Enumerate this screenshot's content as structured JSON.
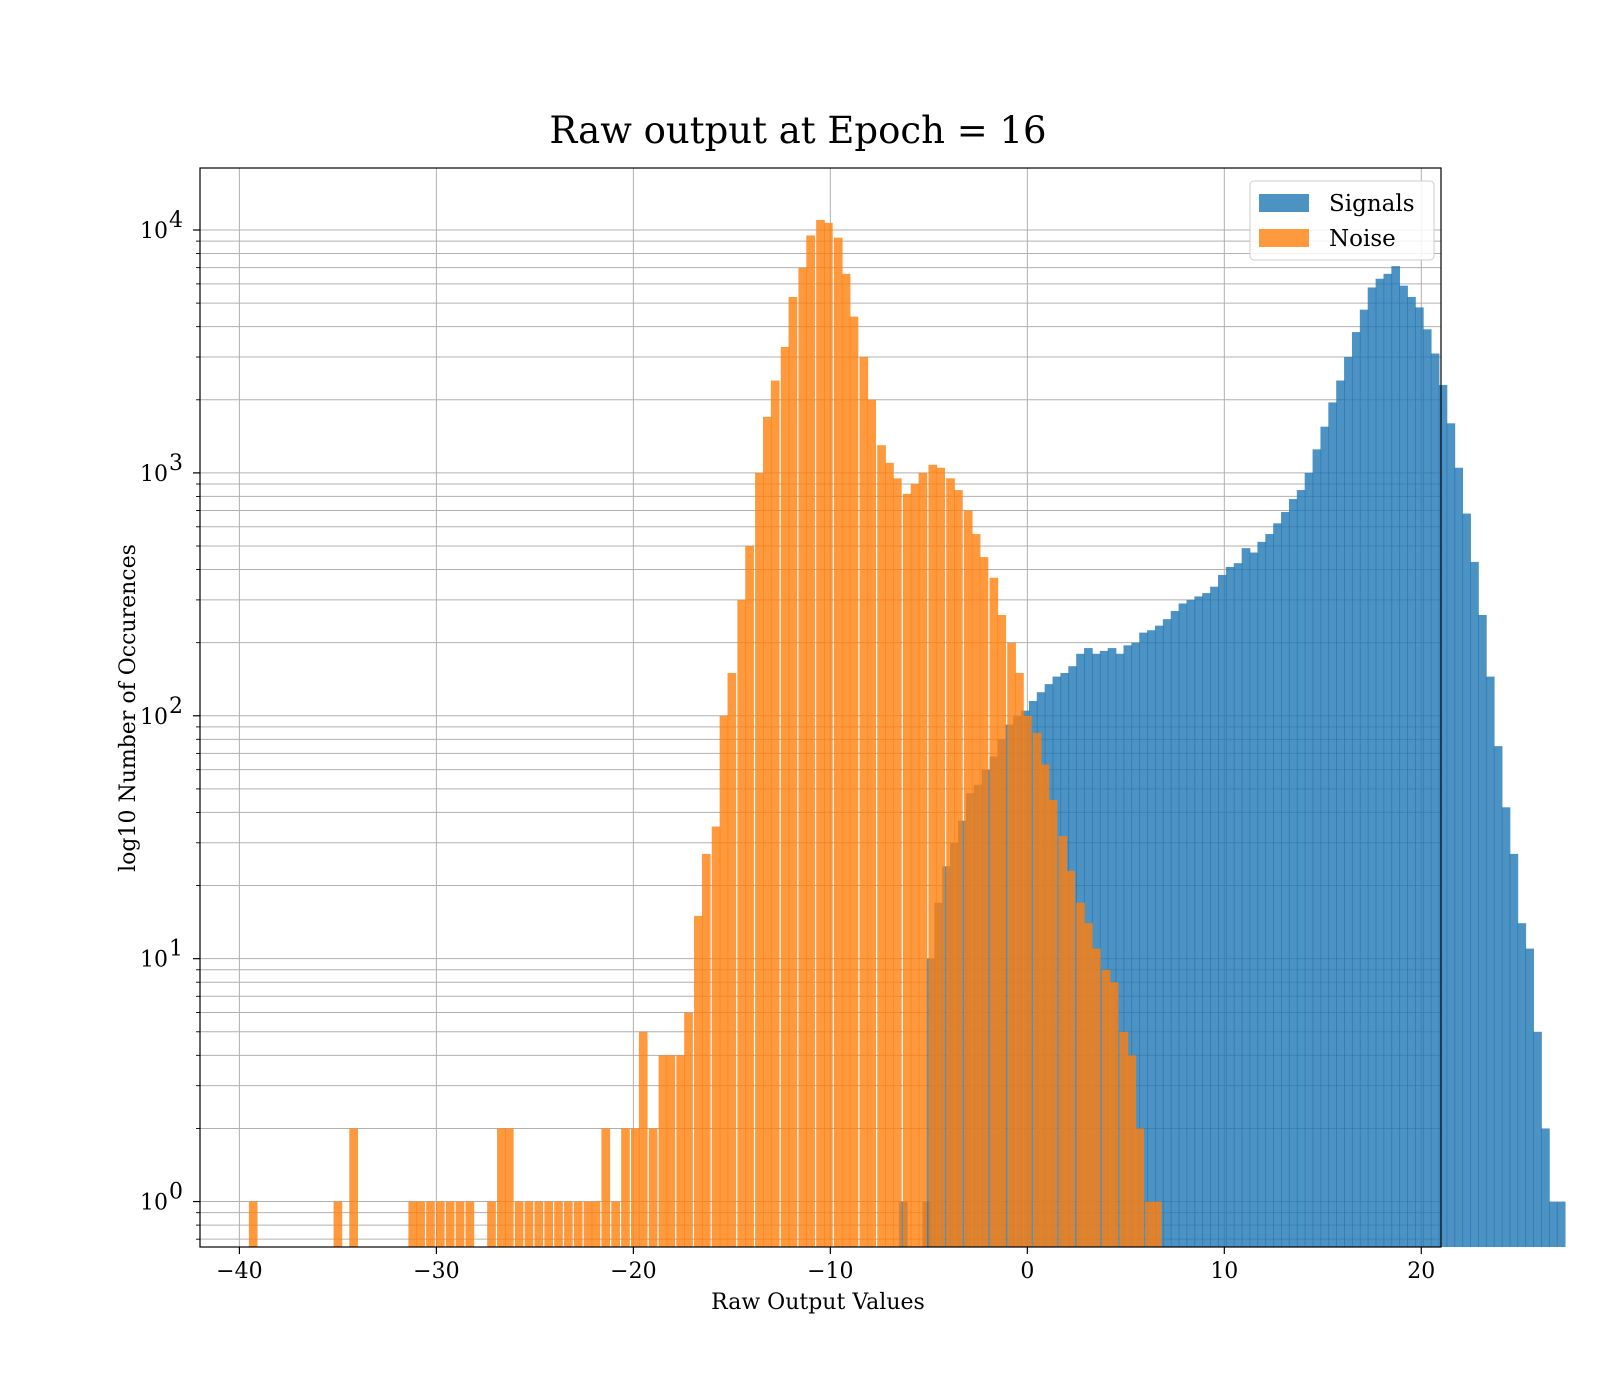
{
  "chart_data": {
    "type": "bar",
    "title": "Raw output at Epoch = 16",
    "xlabel": "Raw Output Values",
    "ylabel": "log10 Number of Occurences",
    "xlim": [
      -42,
      21
    ],
    "ylim": [
      0.65,
      18000
    ],
    "yscale": "log",
    "grid": true,
    "legend_position": "top-right",
    "x_ticks": [
      {
        "value": -40,
        "label": "−40"
      },
      {
        "value": -30,
        "label": "−30"
      },
      {
        "value": -20,
        "label": "−20"
      },
      {
        "value": -10,
        "label": "−10"
      },
      {
        "value": 0,
        "label": "0"
      },
      {
        "value": 10,
        "label": "10"
      },
      {
        "value": 20,
        "label": "20"
      }
    ],
    "y_ticks": [
      {
        "value": 1,
        "base": "10",
        "exp": "0"
      },
      {
        "value": 10,
        "base": "10",
        "exp": "1"
      },
      {
        "value": 100,
        "base": "10",
        "exp": "2"
      },
      {
        "value": 1000,
        "base": "10",
        "exp": "3"
      },
      {
        "value": 10000,
        "base": "10",
        "exp": "4"
      }
    ],
    "series": [
      {
        "name": "Signals",
        "color": "#1f77b4",
        "opacity": 0.8,
        "bins": [
          [
            -6.3,
            1
          ],
          [
            -5.1,
            1
          ],
          [
            -4.9,
            10
          ],
          [
            -4.5,
            17
          ],
          [
            -4.1,
            24
          ],
          [
            -3.7,
            30
          ],
          [
            -3.3,
            37
          ],
          [
            -2.9,
            48
          ],
          [
            -2.5,
            52
          ],
          [
            -2.1,
            60
          ],
          [
            -1.7,
            68
          ],
          [
            -1.3,
            80
          ],
          [
            -0.9,
            92
          ],
          [
            -0.5,
            100
          ],
          [
            -0.1,
            105
          ],
          [
            0.3,
            115
          ],
          [
            0.7,
            125
          ],
          [
            1.1,
            135
          ],
          [
            1.5,
            145
          ],
          [
            1.9,
            150
          ],
          [
            2.3,
            160
          ],
          [
            2.7,
            180
          ],
          [
            3.1,
            190
          ],
          [
            3.5,
            180
          ],
          [
            3.9,
            185
          ],
          [
            4.3,
            190
          ],
          [
            4.7,
            180
          ],
          [
            5.1,
            195
          ],
          [
            5.5,
            200
          ],
          [
            5.9,
            220
          ],
          [
            6.3,
            225
          ],
          [
            6.7,
            235
          ],
          [
            7.1,
            250
          ],
          [
            7.5,
            270
          ],
          [
            7.9,
            290
          ],
          [
            8.3,
            300
          ],
          [
            8.7,
            310
          ],
          [
            9.1,
            320
          ],
          [
            9.5,
            340
          ],
          [
            9.9,
            380
          ],
          [
            10.3,
            410
          ],
          [
            10.7,
            425
          ],
          [
            11.1,
            490
          ],
          [
            11.5,
            470
          ],
          [
            11.9,
            520
          ],
          [
            12.3,
            560
          ],
          [
            12.7,
            620
          ],
          [
            13.1,
            690
          ],
          [
            13.5,
            780
          ],
          [
            13.9,
            850
          ],
          [
            14.3,
            1000
          ],
          [
            14.7,
            1250
          ],
          [
            15.1,
            1550
          ],
          [
            15.5,
            1950
          ],
          [
            15.9,
            2400
          ],
          [
            16.3,
            3000
          ],
          [
            16.7,
            3800
          ],
          [
            17.1,
            4700
          ],
          [
            17.5,
            5800
          ],
          [
            17.9,
            6300
          ],
          [
            18.3,
            6600
          ],
          [
            18.7,
            7100
          ],
          [
            19.1,
            5900
          ],
          [
            19.5,
            5300
          ],
          [
            19.9,
            4800
          ],
          [
            20.3,
            3900
          ],
          [
            20.7,
            3100
          ],
          [
            21.1,
            2300
          ],
          [
            21.5,
            1600
          ],
          [
            21.9,
            1050
          ],
          [
            22.3,
            680
          ],
          [
            22.7,
            430
          ],
          [
            23.1,
            260
          ],
          [
            23.5,
            145
          ],
          [
            23.9,
            75
          ],
          [
            24.3,
            42
          ],
          [
            24.7,
            27
          ],
          [
            25.1,
            14
          ],
          [
            25.5,
            11
          ],
          [
            25.9,
            5
          ],
          [
            26.3,
            2
          ],
          [
            26.7,
            1
          ],
          [
            27.1,
            1
          ]
        ]
      },
      {
        "name": "Noise",
        "color": "#ff7f0e",
        "opacity": 0.8,
        "bins": [
          [
            -39.3,
            1
          ],
          [
            -35.0,
            1
          ],
          [
            -34.2,
            2
          ],
          [
            -31.2,
            1
          ],
          [
            -30.8,
            1
          ],
          [
            -30.3,
            1
          ],
          [
            -29.8,
            1
          ],
          [
            -29.3,
            1
          ],
          [
            -28.8,
            1
          ],
          [
            -28.3,
            1
          ],
          [
            -27.2,
            1
          ],
          [
            -26.7,
            2
          ],
          [
            -26.3,
            2
          ],
          [
            -25.8,
            1
          ],
          [
            -25.3,
            1
          ],
          [
            -24.8,
            1
          ],
          [
            -24.3,
            1
          ],
          [
            -23.8,
            1
          ],
          [
            -23.3,
            1
          ],
          [
            -22.8,
            1
          ],
          [
            -22.3,
            1
          ],
          [
            -21.9,
            1
          ],
          [
            -21.4,
            2
          ],
          [
            -20.9,
            1
          ],
          [
            -20.4,
            2
          ],
          [
            -19.9,
            2
          ],
          [
            -19.5,
            5
          ],
          [
            -19.0,
            2
          ],
          [
            -18.5,
            4
          ],
          [
            -18.1,
            4
          ],
          [
            -17.6,
            4
          ],
          [
            -17.2,
            6
          ],
          [
            -16.7,
            15
          ],
          [
            -16.3,
            27
          ],
          [
            -15.8,
            35
          ],
          [
            -15.4,
            100
          ],
          [
            -15.0,
            150
          ],
          [
            -14.5,
            300
          ],
          [
            -14.1,
            500
          ],
          [
            -13.6,
            1000
          ],
          [
            -13.2,
            1700
          ],
          [
            -12.8,
            2400
          ],
          [
            -12.3,
            3300
          ],
          [
            -11.9,
            5300
          ],
          [
            -11.4,
            7000
          ],
          [
            -11.0,
            9500
          ],
          [
            -10.5,
            11000
          ],
          [
            -10.1,
            10700
          ],
          [
            -9.6,
            9300
          ],
          [
            -9.2,
            6600
          ],
          [
            -8.8,
            4400
          ],
          [
            -8.3,
            3000
          ],
          [
            -7.9,
            2000
          ],
          [
            -7.4,
            1300
          ],
          [
            -7.0,
            1100
          ],
          [
            -6.6,
            950
          ],
          [
            -6.1,
            820
          ],
          [
            -5.7,
            900
          ],
          [
            -5.3,
            1000
          ],
          [
            -4.8,
            1080
          ],
          [
            -4.4,
            1050
          ],
          [
            -3.9,
            950
          ],
          [
            -3.5,
            850
          ],
          [
            -3.0,
            700
          ],
          [
            -2.6,
            560
          ],
          [
            -2.2,
            450
          ],
          [
            -1.7,
            370
          ],
          [
            -1.3,
            260
          ],
          [
            -0.8,
            200
          ],
          [
            -0.4,
            150
          ],
          [
            0.0,
            100
          ],
          [
            0.5,
            85
          ],
          [
            0.9,
            63
          ],
          [
            1.3,
            45
          ],
          [
            1.8,
            32
          ],
          [
            2.2,
            23
          ],
          [
            2.7,
            17
          ],
          [
            3.1,
            14
          ],
          [
            3.5,
            11
          ],
          [
            4.0,
            9
          ],
          [
            4.4,
            8
          ],
          [
            4.9,
            5
          ],
          [
            5.3,
            4
          ],
          [
            5.7,
            2
          ],
          [
            6.2,
            1
          ],
          [
            6.6,
            1
          ]
        ]
      }
    ]
  }
}
